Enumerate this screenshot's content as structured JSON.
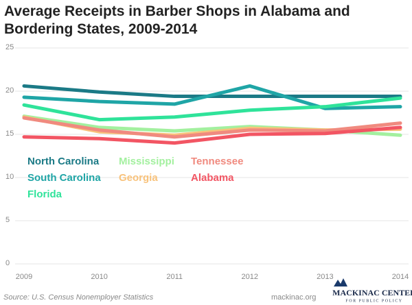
{
  "chart_data": {
    "type": "line",
    "title": "Average Receipts in Barber Shops in Alabama and Bordering States, 2009-2014",
    "categories": [
      "2009",
      "2010",
      "2011",
      "2012",
      "2013",
      "2014"
    ],
    "ylim": [
      0,
      25
    ],
    "yticks": [
      0,
      5,
      10,
      15,
      20,
      25
    ],
    "grid": true,
    "series": [
      {
        "name": "North Carolina",
        "color": "#1b7a86",
        "values": [
          20.6,
          19.9,
          19.4,
          19.4,
          19.4,
          19.4
        ]
      },
      {
        "name": "South Carolina",
        "color": "#1fa5a6",
        "values": [
          19.3,
          18.8,
          18.5,
          20.6,
          18.0,
          18.2
        ]
      },
      {
        "name": "Florida",
        "color": "#2fe39a",
        "values": [
          18.4,
          16.7,
          17.0,
          17.8,
          18.2,
          19.2
        ]
      },
      {
        "name": "Mississippi",
        "color": "#a3f09f",
        "values": [
          17.1,
          15.8,
          15.4,
          15.9,
          15.5,
          14.9
        ]
      },
      {
        "name": "Georgia",
        "color": "#f8c27b",
        "values": [
          17.0,
          15.3,
          14.9,
          15.7,
          15.5,
          15.6
        ]
      },
      {
        "name": "Tennessee",
        "color": "#f08a7f",
        "values": [
          16.9,
          15.5,
          14.7,
          15.5,
          15.4,
          16.3
        ]
      },
      {
        "name": "Alabama",
        "color": "#f25563",
        "values": [
          14.7,
          14.5,
          14.0,
          15.0,
          15.1,
          15.8
        ]
      }
    ]
  },
  "source": "Source: U.S. Census Nonemployer Statistics",
  "website": "mackinac.org",
  "logo": {
    "name": "MACKINAC CENTER",
    "tagline": "FOR PUBLIC POLICY"
  }
}
